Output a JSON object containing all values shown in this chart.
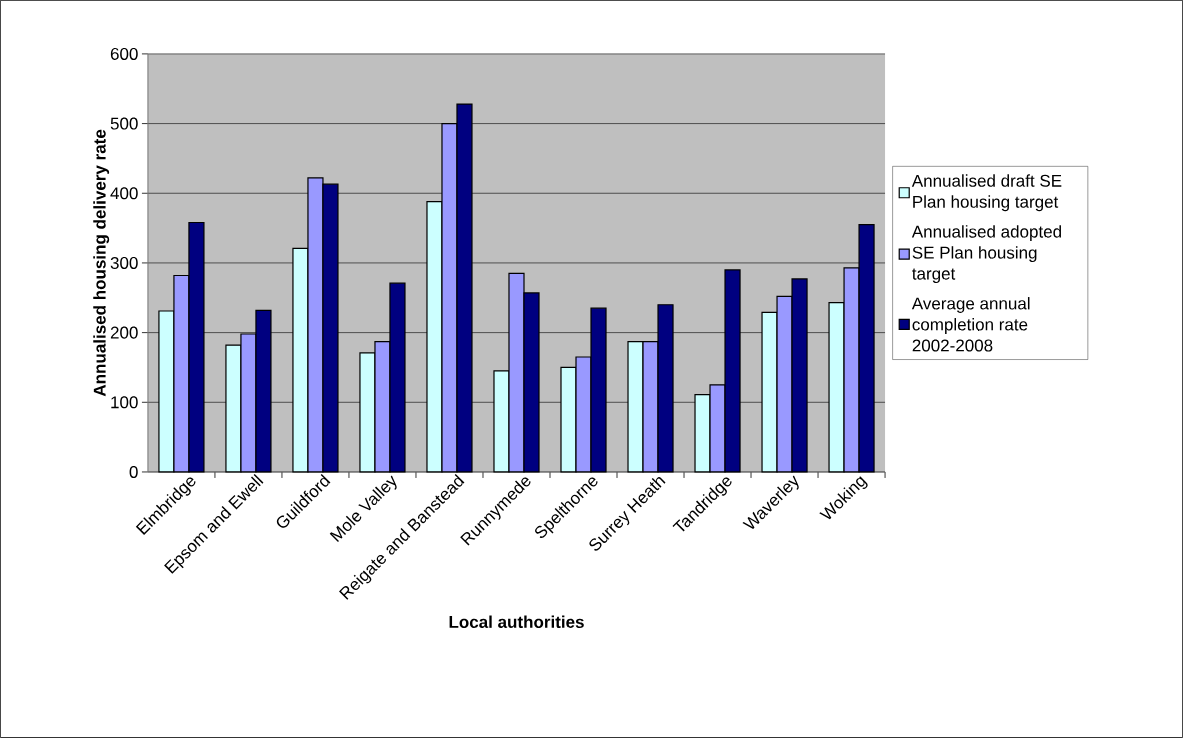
{
  "chart_data": {
    "type": "bar",
    "xlabel": "Local authorities",
    "ylabel": "Annualised housing delivery rate",
    "categories": [
      "Elmbridge",
      "Epsom and Ewell",
      "Guildford",
      "Mole Valley",
      "Reigate and Banstead",
      "Runnymede",
      "Spelthorne",
      "Surrey Heath",
      "Tandridge",
      "Waverley",
      "Woking"
    ],
    "series": [
      {
        "name": "Annualised draft SE Plan housing target",
        "color": "#ccffff",
        "values": [
          231,
          182,
          321,
          171,
          388,
          145,
          150,
          187,
          111,
          229,
          243
        ]
      },
      {
        "name": "Annualised adopted SE Plan housing target",
        "color": "#9999ff",
        "values": [
          282,
          198,
          422,
          187,
          500,
          285,
          165,
          187,
          125,
          252,
          293
        ]
      },
      {
        "name": "Average annual completion rate 2002-2008",
        "color": "#000080",
        "values": [
          358,
          232,
          413,
          271,
          528,
          257,
          235,
          240,
          290,
          277,
          355
        ]
      }
    ],
    "ylim": [
      0,
      600
    ],
    "yticks": [
      0,
      100,
      200,
      300,
      400,
      500,
      600
    ],
    "grid": "y",
    "legend": "right"
  }
}
